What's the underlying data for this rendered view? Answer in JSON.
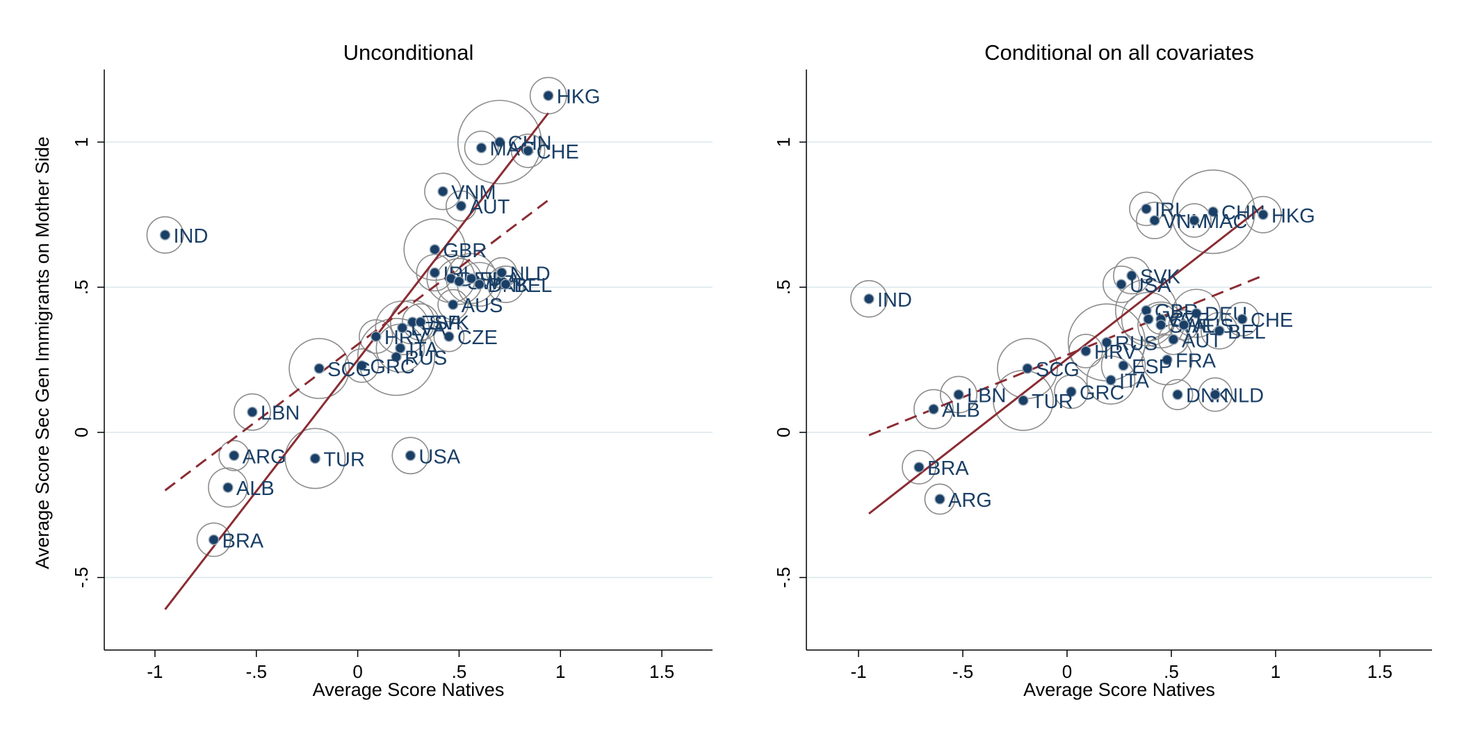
{
  "chart_data": [
    {
      "type": "scatter",
      "title": "Unconditional",
      "xlabel": "Average Score Natives",
      "ylabel": "Average Score Sec Gen Immigrants on Mother Side",
      "xlim": [
        -1.25,
        1.75
      ],
      "ylim": [
        -0.75,
        1.25
      ],
      "xticks": [
        -1,
        -0.5,
        0,
        0.5,
        1,
        1.5
      ],
      "xtick_labels": [
        "-1",
        "-.5",
        "0",
        ".5",
        "1",
        "1.5"
      ],
      "yticks": [
        -0.5,
        0,
        0.5,
        1
      ],
      "ytick_labels": [
        "-.5",
        "0",
        ".5",
        "1"
      ],
      "grid": "horizontal",
      "points": [
        {
          "label": "HKG",
          "x": 0.94,
          "y": 1.16,
          "w": 5
        },
        {
          "label": "CHN",
          "x": 0.7,
          "y": 1.0,
          "w": 36
        },
        {
          "label": "MAC",
          "x": 0.61,
          "y": 0.98,
          "w": 4
        },
        {
          "label": "CHE",
          "x": 0.84,
          "y": 0.97,
          "w": 4
        },
        {
          "label": "VNM",
          "x": 0.42,
          "y": 0.83,
          "w": 5
        },
        {
          "label": "AUT",
          "x": 0.51,
          "y": 0.78,
          "w": 3
        },
        {
          "label": "IND",
          "x": -0.95,
          "y": 0.68,
          "w": 5
        },
        {
          "label": "GBR",
          "x": 0.38,
          "y": 0.63,
          "w": 18
        },
        {
          "label": "IRL",
          "x": 0.38,
          "y": 0.55,
          "w": 5
        },
        {
          "label": "DEU",
          "x": 0.46,
          "y": 0.53,
          "w": 10
        },
        {
          "label": "SWE",
          "x": 0.5,
          "y": 0.52,
          "w": 9
        },
        {
          "label": "FRA",
          "x": 0.56,
          "y": 0.53,
          "w": 11
        },
        {
          "label": "DNK",
          "x": 0.6,
          "y": 0.51,
          "w": 8
        },
        {
          "label": "NLD",
          "x": 0.71,
          "y": 0.55,
          "w": 3
        },
        {
          "label": "BEL",
          "x": 0.73,
          "y": 0.51,
          "w": 5
        },
        {
          "label": "AUS",
          "x": 0.47,
          "y": 0.44,
          "w": 3
        },
        {
          "label": "ESP",
          "x": 0.27,
          "y": 0.38,
          "w": 8
        },
        {
          "label": "SVK",
          "x": 0.31,
          "y": 0.38,
          "w": 5
        },
        {
          "label": "HRV",
          "x": 0.09,
          "y": 0.33,
          "w": 4
        },
        {
          "label": "CZE",
          "x": 0.45,
          "y": 0.33,
          "w": 3
        },
        {
          "label": "LVA",
          "x": 0.22,
          "y": 0.36,
          "w": 13
        },
        {
          "label": "ITA",
          "x": 0.21,
          "y": 0.29,
          "w": 10
        },
        {
          "label": "RUS",
          "x": 0.19,
          "y": 0.26,
          "w": 30
        },
        {
          "label": "GRC",
          "x": 0.02,
          "y": 0.23,
          "w": 4
        },
        {
          "label": "SCG",
          "x": -0.19,
          "y": 0.22,
          "w": 17
        },
        {
          "label": "LBN",
          "x": -0.52,
          "y": 0.07,
          "w": 5
        },
        {
          "label": "ARG",
          "x": -0.61,
          "y": -0.08,
          "w": 3
        },
        {
          "label": "TUR",
          "x": -0.21,
          "y": -0.09,
          "w": 17
        },
        {
          "label": "USA",
          "x": 0.26,
          "y": -0.08,
          "w": 5
        },
        {
          "label": "ALB",
          "x": -0.64,
          "y": -0.19,
          "w": 6
        },
        {
          "label": "BRA",
          "x": -0.71,
          "y": -0.37,
          "w": 4
        }
      ],
      "fit_weighted": {
        "style": "solid",
        "x": [
          -0.95,
          0.94
        ],
        "y": [
          -0.61,
          1.1
        ]
      },
      "fit_unweighted": {
        "style": "dashed",
        "x": [
          -0.95,
          0.94
        ],
        "y": [
          -0.2,
          0.8
        ]
      }
    },
    {
      "type": "scatter",
      "title": "Conditional on all covariates",
      "xlabel": "Average Score Natives",
      "ylabel": "",
      "xlim": [
        -1.25,
        1.75
      ],
      "ylim": [
        -0.75,
        1.25
      ],
      "xticks": [
        -1,
        -0.5,
        0,
        0.5,
        1,
        1.5
      ],
      "xtick_labels": [
        "-1",
        "-.5",
        "0",
        ".5",
        "1",
        "1.5"
      ],
      "yticks": [
        -0.5,
        0,
        0.5,
        1
      ],
      "ytick_labels": [
        "-.5",
        "0",
        ".5",
        "1"
      ],
      "grid": "horizontal",
      "points": [
        {
          "label": "IRL",
          "x": 0.38,
          "y": 0.77,
          "w": 4
        },
        {
          "label": "VNM",
          "x": 0.42,
          "y": 0.73,
          "w": 5
        },
        {
          "label": "CHN",
          "x": 0.7,
          "y": 0.76,
          "w": 36
        },
        {
          "label": "MAC",
          "x": 0.61,
          "y": 0.73,
          "w": 4
        },
        {
          "label": "HKG",
          "x": 0.94,
          "y": 0.75,
          "w": 5
        },
        {
          "label": "SVK",
          "x": 0.31,
          "y": 0.54,
          "w": 5
        },
        {
          "label": "USA",
          "x": 0.26,
          "y": 0.51,
          "w": 5
        },
        {
          "label": "IND",
          "x": -0.95,
          "y": 0.46,
          "w": 5
        },
        {
          "label": "GBR",
          "x": 0.38,
          "y": 0.42,
          "w": 18
        },
        {
          "label": "DEU",
          "x": 0.62,
          "y": 0.41,
          "w": 10
        },
        {
          "label": "CHE",
          "x": 0.84,
          "y": 0.39,
          "w": 4
        },
        {
          "label": "CZE",
          "x": 0.45,
          "y": 0.39,
          "w": 3
        },
        {
          "label": "LVA",
          "x": 0.39,
          "y": 0.39,
          "w": 13
        },
        {
          "label": "SWE",
          "x": 0.45,
          "y": 0.37,
          "w": 9
        },
        {
          "label": "AUS",
          "x": 0.56,
          "y": 0.37,
          "w": 3
        },
        {
          "label": "BEL",
          "x": 0.73,
          "y": 0.35,
          "w": 5
        },
        {
          "label": "AUT",
          "x": 0.51,
          "y": 0.32,
          "w": 3
        },
        {
          "label": "RUS",
          "x": 0.19,
          "y": 0.31,
          "w": 30
        },
        {
          "label": "HRV",
          "x": 0.09,
          "y": 0.28,
          "w": 4
        },
        {
          "label": "FRA",
          "x": 0.48,
          "y": 0.25,
          "w": 11
        },
        {
          "label": "SCG",
          "x": -0.19,
          "y": 0.22,
          "w": 17
        },
        {
          "label": "ESP",
          "x": 0.27,
          "y": 0.23,
          "w": 8
        },
        {
          "label": "ITA",
          "x": 0.21,
          "y": 0.18,
          "w": 10
        },
        {
          "label": "GRC",
          "x": 0.02,
          "y": 0.14,
          "w": 4
        },
        {
          "label": "LBN",
          "x": -0.52,
          "y": 0.13,
          "w": 5
        },
        {
          "label": "DNK",
          "x": 0.53,
          "y": 0.13,
          "w": 3
        },
        {
          "label": "NLD",
          "x": 0.71,
          "y": 0.13,
          "w": 4
        },
        {
          "label": "TUR",
          "x": -0.21,
          "y": 0.11,
          "w": 17
        },
        {
          "label": "ALB",
          "x": -0.64,
          "y": 0.08,
          "w": 6
        },
        {
          "label": "BRA",
          "x": -0.71,
          "y": -0.12,
          "w": 4
        },
        {
          "label": "ARG",
          "x": -0.61,
          "y": -0.23,
          "w": 3
        }
      ],
      "fit_weighted": {
        "style": "solid",
        "x": [
          -0.95,
          0.94
        ],
        "y": [
          -0.28,
          0.78
        ]
      },
      "fit_unweighted": {
        "style": "dashed",
        "x": [
          -0.95,
          0.94
        ],
        "y": [
          -0.01,
          0.54
        ]
      }
    }
  ],
  "colors": {
    "marker": "#1a3f66",
    "label": "#1a3f66",
    "fit_line": "#8b2c33",
    "weight_circle": "#8c8c8c",
    "grid": "#d9e6ec",
    "axis": "#000000"
  }
}
